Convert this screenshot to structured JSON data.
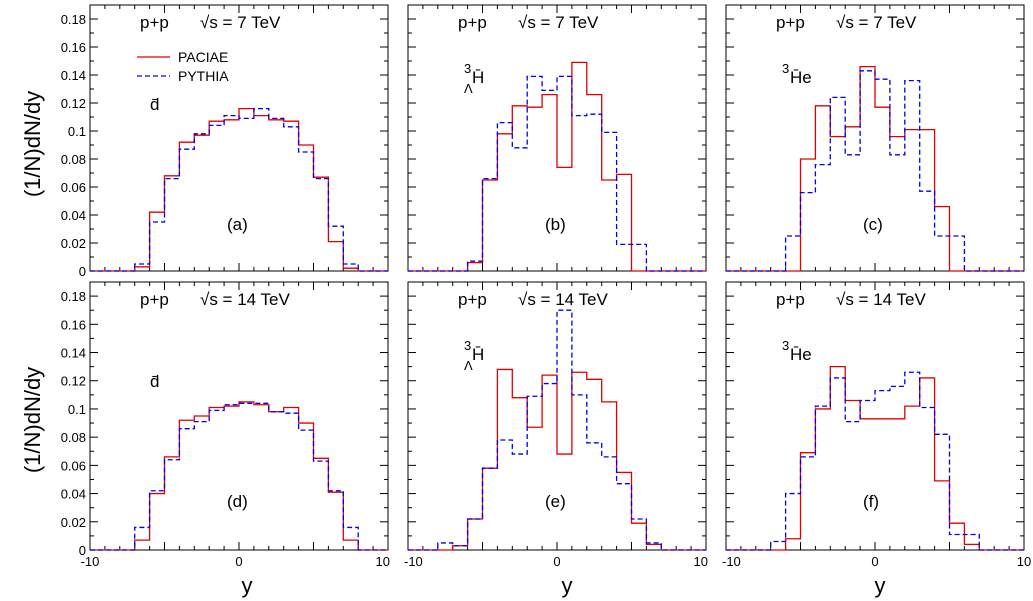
{
  "figure": {
    "ylabel": "(1/N)dN/dy",
    "xlabel": "y",
    "legend": {
      "paciae": "PACIAE",
      "pythia": "PYTHIA",
      "paciae_color": "#e00000",
      "pythia_color": "#0000ee"
    }
  },
  "chart_data": [
    {
      "type": "histogram",
      "panel_label": "(a)",
      "system": "p+p",
      "energy": "√s = 7 TeV",
      "particle": "d̄",
      "xlim": [
        -10,
        10
      ],
      "ylim": [
        0,
        0.19
      ],
      "x_ticks": [
        "-10",
        "0",
        "10"
      ],
      "y_ticks": [
        "0",
        "0.02",
        "0.04",
        "0.06",
        "0.08",
        "0.1",
        "0.12",
        "0.14",
        "0.16",
        "0.18"
      ],
      "bin_edges": [
        -10,
        -9,
        -8,
        -7,
        -6,
        -5,
        -4,
        -3,
        -2,
        -1,
        0,
        1,
        2,
        3,
        4,
        5,
        6,
        7,
        8,
        9,
        10
      ],
      "series": [
        {
          "name": "PACIAE",
          "style": "solid",
          "color": "#e00000",
          "values": [
            0,
            0,
            0,
            0.003,
            0.042,
            0.068,
            0.092,
            0.097,
            0.107,
            0.108,
            0.116,
            0.111,
            0.108,
            0.107,
            0.09,
            0.067,
            0.021,
            0.002,
            0,
            0
          ]
        },
        {
          "name": "PYTHIA",
          "style": "dashed",
          "color": "#0000ee",
          "values": [
            0,
            0,
            0,
            0.005,
            0.035,
            0.066,
            0.087,
            0.098,
            0.104,
            0.111,
            0.109,
            0.116,
            0.109,
            0.103,
            0.085,
            0.066,
            0.032,
            0.005,
            0,
            0
          ]
        }
      ]
    },
    {
      "type": "histogram",
      "panel_label": "(b)",
      "system": "p+p",
      "energy": "√s = 7 TeV",
      "particle_nucleus": "3",
      "particle_sub": "Λ",
      "particle": "H̄",
      "xlim": [
        -10,
        10
      ],
      "ylim": [
        0,
        0.19
      ],
      "x_ticks": [
        "-10",
        "0",
        "10"
      ],
      "y_ticks": [
        "0",
        "0.02",
        "0.04",
        "0.06",
        "0.08",
        "0.1",
        "0.12",
        "0.14",
        "0.16",
        "0.18"
      ],
      "bin_edges": [
        -10,
        -9,
        -8,
        -7,
        -6,
        -5,
        -4,
        -3,
        -2,
        -1,
        0,
        1,
        2,
        3,
        4,
        5,
        6,
        7,
        8,
        9,
        10
      ],
      "series": [
        {
          "name": "PACIAE",
          "style": "solid",
          "color": "#e00000",
          "values": [
            0,
            0,
            0,
            0,
            0.006,
            0.065,
            0.098,
            0.118,
            0.117,
            0.126,
            0.074,
            0.149,
            0.126,
            0.065,
            0.069,
            0,
            0,
            0,
            0,
            0
          ]
        },
        {
          "name": "PYTHIA",
          "style": "dashed",
          "color": "#0000ee",
          "values": [
            0,
            0,
            0,
            0,
            0.007,
            0.066,
            0.106,
            0.088,
            0.139,
            0.129,
            0.139,
            0.111,
            0.112,
            0.099,
            0.019,
            0.019,
            0,
            0,
            0,
            0
          ]
        }
      ]
    },
    {
      "type": "histogram",
      "panel_label": "(c)",
      "system": "p+p",
      "energy": "√s = 7 TeV",
      "particle_nucleus": "3",
      "particle": "H̄e",
      "xlim": [
        -10,
        10
      ],
      "ylim": [
        0,
        0.19
      ],
      "x_ticks": [
        "-10",
        "0",
        "10"
      ],
      "y_ticks": [
        "0",
        "0.02",
        "0.04",
        "0.06",
        "0.08",
        "0.1",
        "0.12",
        "0.14",
        "0.16",
        "0.18"
      ],
      "bin_edges": [
        -10,
        -9,
        -8,
        -7,
        -6,
        -5,
        -4,
        -3,
        -2,
        -1,
        0,
        1,
        2,
        3,
        4,
        5,
        6,
        7,
        8,
        9,
        10
      ],
      "series": [
        {
          "name": "PACIAE",
          "style": "solid",
          "color": "#e00000",
          "values": [
            0,
            0,
            0,
            0,
            0,
            0.08,
            0.118,
            0.096,
            0.103,
            0.146,
            0.117,
            0.096,
            0.101,
            0.101,
            0.046,
            0,
            0,
            0,
            0,
            0
          ]
        },
        {
          "name": "PYTHIA",
          "style": "dashed",
          "color": "#0000ee",
          "values": [
            0,
            0,
            0,
            0,
            0.025,
            0.056,
            0.076,
            0.124,
            0.083,
            0.143,
            0.137,
            0.083,
            0.136,
            0.057,
            0.025,
            0.025,
            0,
            0,
            0,
            0
          ]
        }
      ]
    },
    {
      "type": "histogram",
      "panel_label": "(d)",
      "system": "p+p",
      "energy": "√s = 14 TeV",
      "particle": "d̄",
      "xlim": [
        -10,
        10
      ],
      "ylim": [
        0,
        0.19
      ],
      "x_ticks": [
        "-10",
        "0",
        "10"
      ],
      "y_ticks": [
        "0",
        "0.02",
        "0.04",
        "0.06",
        "0.08",
        "0.1",
        "0.12",
        "0.14",
        "0.16",
        "0.18"
      ],
      "bin_edges": [
        -10,
        -9,
        -8,
        -7,
        -6,
        -5,
        -4,
        -3,
        -2,
        -1,
        0,
        1,
        2,
        3,
        4,
        5,
        6,
        7,
        8,
        9,
        10
      ],
      "series": [
        {
          "name": "PACIAE",
          "style": "solid",
          "color": "#e00000",
          "values": [
            0,
            0,
            0,
            0.007,
            0.04,
            0.066,
            0.092,
            0.095,
            0.101,
            0.102,
            0.105,
            0.103,
            0.098,
            0.101,
            0.09,
            0.065,
            0.041,
            0.007,
            0,
            0
          ]
        },
        {
          "name": "PYTHIA",
          "style": "dashed",
          "color": "#0000ee",
          "values": [
            0,
            0,
            0,
            0.016,
            0.042,
            0.064,
            0.086,
            0.091,
            0.099,
            0.103,
            0.104,
            0.104,
            0.098,
            0.097,
            0.085,
            0.063,
            0.042,
            0.016,
            0,
            0
          ]
        }
      ]
    },
    {
      "type": "histogram",
      "panel_label": "(e)",
      "system": "p+p",
      "energy": "√s = 14 TeV",
      "particle_nucleus": "3",
      "particle_sub": "Λ",
      "particle": "H̄",
      "xlim": [
        -10,
        10
      ],
      "ylim": [
        0,
        0.19
      ],
      "x_ticks": [
        "-10",
        "0",
        "10"
      ],
      "y_ticks": [
        "0",
        "0.02",
        "0.04",
        "0.06",
        "0.08",
        "0.1",
        "0.12",
        "0.14",
        "0.16",
        "0.18"
      ],
      "bin_edges": [
        -10,
        -9,
        -8,
        -7,
        -6,
        -5,
        -4,
        -3,
        -2,
        -1,
        0,
        1,
        2,
        3,
        4,
        5,
        6,
        7,
        8,
        9,
        10
      ],
      "series": [
        {
          "name": "PACIAE",
          "style": "solid",
          "color": "#e00000",
          "values": [
            0,
            0,
            0,
            0.003,
            0.022,
            0.058,
            0.128,
            0.108,
            0.087,
            0.124,
            0.068,
            0.126,
            0.121,
            0.105,
            0.055,
            0.019,
            0.004,
            0,
            0,
            0
          ]
        },
        {
          "name": "PYTHIA",
          "style": "dashed",
          "color": "#0000ee",
          "values": [
            0,
            0,
            0.005,
            0.003,
            0.022,
            0.058,
            0.078,
            0.068,
            0.109,
            0.118,
            0.17,
            0.11,
            0.076,
            0.066,
            0.047,
            0.022,
            0.005,
            0,
            0,
            0
          ]
        }
      ]
    },
    {
      "type": "histogram",
      "panel_label": "(f)",
      "system": "p+p",
      "energy": "√s = 14 TeV",
      "particle_nucleus": "3",
      "particle": "H̄e",
      "xlim": [
        -10,
        10
      ],
      "ylim": [
        0,
        0.19
      ],
      "x_ticks": [
        "-10",
        "0",
        "10"
      ],
      "y_ticks": [
        "0",
        "0.02",
        "0.04",
        "0.06",
        "0.08",
        "0.1",
        "0.12",
        "0.14",
        "0.16",
        "0.18"
      ],
      "bin_edges": [
        -10,
        -9,
        -8,
        -7,
        -6,
        -5,
        -4,
        -3,
        -2,
        -1,
        0,
        1,
        2,
        3,
        4,
        5,
        6,
        7,
        8,
        9,
        10
      ],
      "series": [
        {
          "name": "PACIAE",
          "style": "solid",
          "color": "#e00000",
          "values": [
            0,
            0,
            0,
            0,
            0.008,
            0.069,
            0.1,
            0.13,
            0.106,
            0.093,
            0.093,
            0.093,
            0.102,
            0.122,
            0.049,
            0.019,
            0.004,
            0,
            0,
            0
          ]
        },
        {
          "name": "PYTHIA",
          "style": "dashed",
          "color": "#0000ee",
          "values": [
            0,
            0,
            0,
            0.006,
            0.04,
            0.066,
            0.102,
            0.122,
            0.091,
            0.106,
            0.113,
            0.116,
            0.126,
            0.101,
            0.082,
            0.011,
            0.011,
            0,
            0,
            0
          ]
        }
      ]
    }
  ]
}
